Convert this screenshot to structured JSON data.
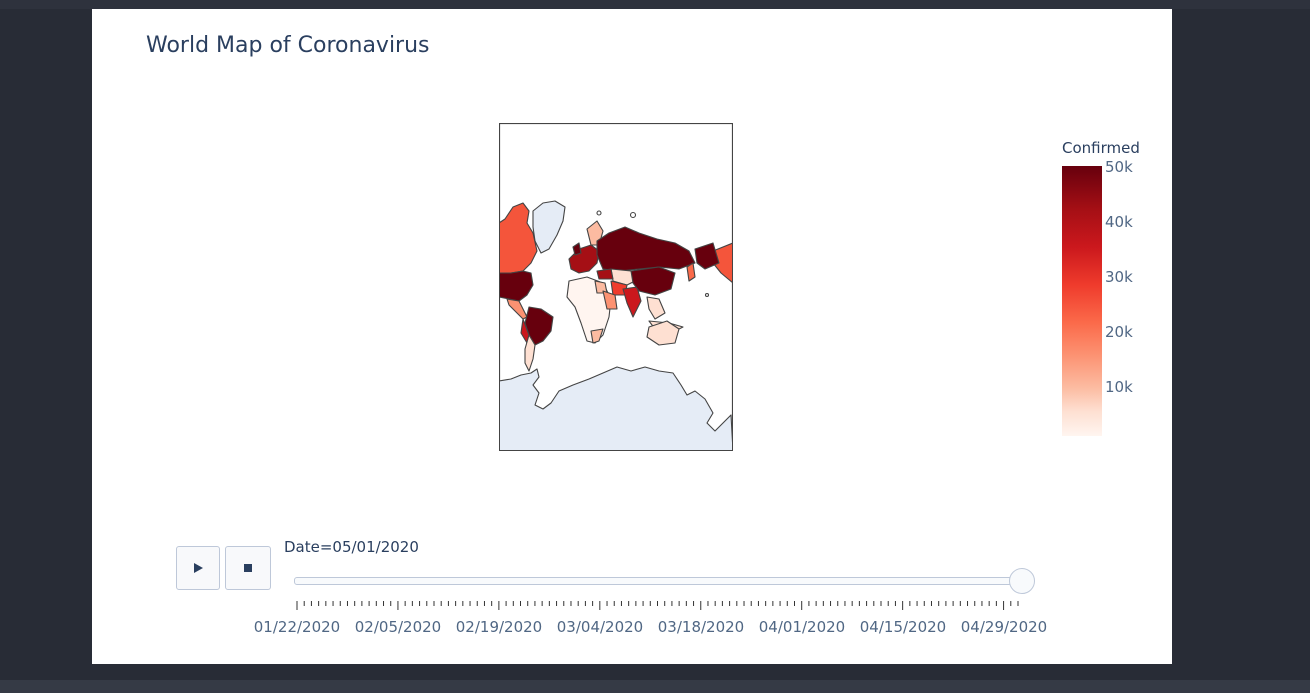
{
  "title": "World Map of Coronavirus",
  "colorbar": {
    "title": "Confirmed",
    "ticks": [
      "50k",
      "40k",
      "30k",
      "20k",
      "10k"
    ],
    "tick_values": [
      50000,
      40000,
      30000,
      20000,
      10000
    ],
    "range": [
      0,
      50000
    ],
    "colorscale": "Reds"
  },
  "animation": {
    "play_icon": "play-icon",
    "stop_icon": "stop-icon",
    "current_label": "Date=05/01/2020",
    "slider_fraction": 1.0,
    "tick_labels": [
      "01/22/2020",
      "02/05/2020",
      "02/19/2020",
      "03/04/2020",
      "03/18/2020",
      "04/01/2020",
      "04/15/2020",
      "04/29/2020"
    ]
  },
  "colors": {
    "ocean": "#e5ecf6",
    "land_empty": "#ffffff",
    "border": "#444444",
    "text": "#2a3f5f"
  }
}
